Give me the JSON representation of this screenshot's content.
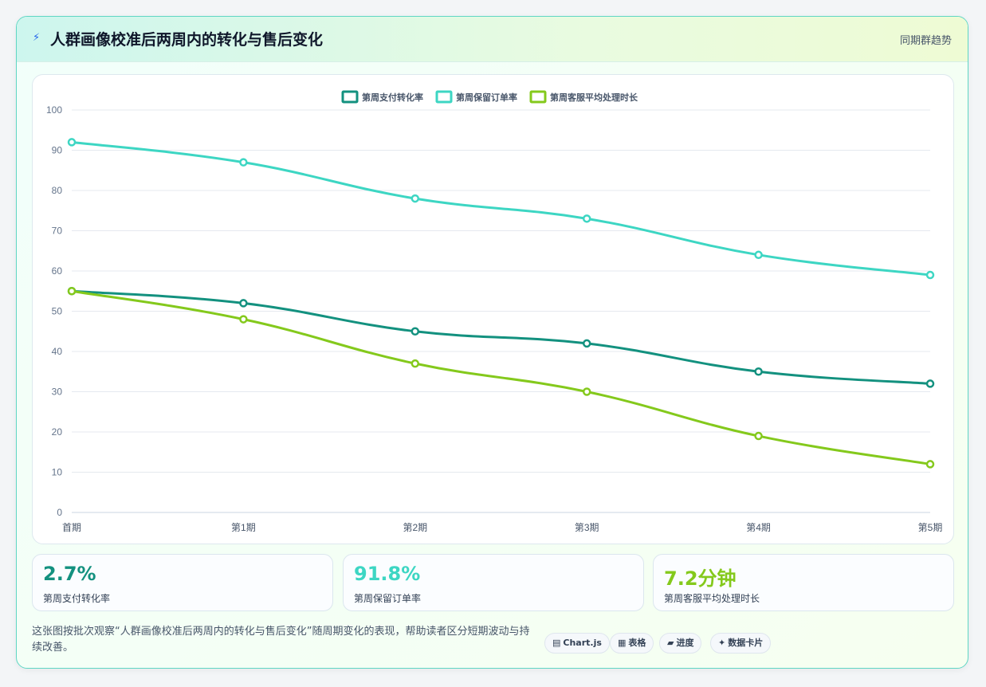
{
  "header": {
    "icon": "lightning-icon",
    "title": "人群画像校准后两周内的转化与售后变化",
    "right_label": "同期群趋势"
  },
  "chart_data": {
    "type": "line",
    "categories": [
      "首期",
      "第1期",
      "第2期",
      "第3期",
      "第4期",
      "第5期"
    ],
    "series": [
      {
        "name": "第周支付转化率",
        "color": "#13917f",
        "values": [
          55,
          52,
          45,
          42,
          35,
          32
        ]
      },
      {
        "name": "第周保留订单率",
        "color": "#3dd6c3",
        "values": [
          92,
          87,
          78,
          73,
          64,
          59
        ]
      },
      {
        "name": "第周客服平均处理时长",
        "color": "#84c91c",
        "values": [
          55,
          48,
          37,
          30,
          19,
          12
        ]
      }
    ],
    "ylim": [
      0,
      100
    ],
    "yticks": [
      0,
      10,
      20,
      30,
      40,
      50,
      60,
      70,
      80,
      90,
      100
    ],
    "grid": true,
    "legend_position": "top-center",
    "smooth": true
  },
  "stats": [
    {
      "value": "2.7%",
      "label": "第周支付转化率",
      "color": "#13917f"
    },
    {
      "value": "91.8%",
      "label": "第周保留订单率",
      "color": "#3dd6c3"
    },
    {
      "value": "7.2分钟",
      "label": "第周客服平均处理时长",
      "color": "#84c91c"
    }
  ],
  "note": "这张图按批次观察“人群画像校准后两周内的转化与售后变化”随周期变化的表现，帮助读者区分短期波动与持续改善。",
  "chips": [
    {
      "icon": "chart-icon",
      "glyph": "▤",
      "label": "Chart.js"
    },
    {
      "icon": "table-icon",
      "glyph": "▦",
      "label": "表格"
    },
    {
      "icon": "progress-icon",
      "glyph": "▰",
      "label": "进度"
    },
    {
      "icon": "sparkle-icon",
      "glyph": "✦",
      "label": "数据卡片"
    }
  ]
}
